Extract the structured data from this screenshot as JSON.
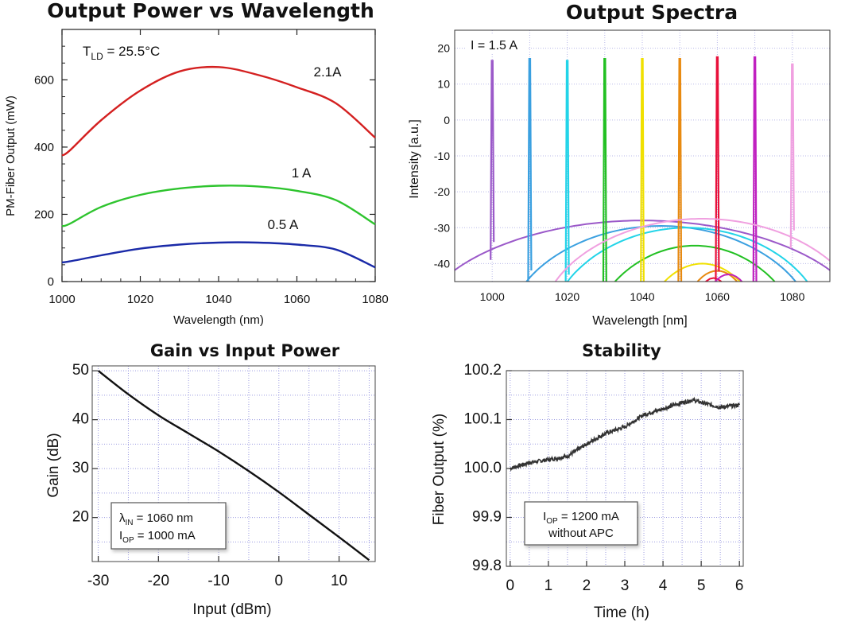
{
  "chart_data": [
    {
      "type": "line",
      "title": "Output Power vs Wavelength",
      "xlabel": "Wavelength (nm)",
      "ylabel": "PM-Fiber Output (mW)",
      "xlim": [
        1000,
        1080
      ],
      "ylim": [
        0,
        750
      ],
      "xticks": [
        "1000",
        "1020",
        "1040",
        "1060",
        "1080"
      ],
      "yticks": [
        "0",
        "200",
        "400",
        "600"
      ],
      "grid": false,
      "annotation": {
        "main": "T",
        "sub": "LD",
        "rest": " = 25.5°C"
      },
      "x": [
        1000,
        1002,
        1010,
        1020,
        1030,
        1040,
        1050,
        1060,
        1070,
        1080
      ],
      "series": [
        {
          "name": "2.1A",
          "color": "#d42020",
          "values": [
            375,
            390,
            480,
            568,
            625,
            638,
            615,
            578,
            530,
            428
          ]
        },
        {
          "name": "1 A",
          "color": "#2ec42e",
          "values": [
            165,
            172,
            222,
            258,
            277,
            285,
            283,
            270,
            242,
            170
          ]
        },
        {
          "name": "0.5 A",
          "color": "#1a2aa8",
          "values": [
            57,
            60,
            78,
            98,
            110,
            116,
            116,
            110,
            95,
            42
          ]
        }
      ]
    },
    {
      "type": "line",
      "title": "Output Spectra",
      "xlabel": "Wavelength [nm]",
      "ylabel": "Intensity [a.u.]",
      "xlim": [
        990,
        1090
      ],
      "ylim": [
        -45,
        25
      ],
      "xticks": [
        "1000",
        "1020",
        "1040",
        "1060",
        "1080"
      ],
      "yticks": [
        "20",
        "10",
        "0",
        "-10",
        "-20",
        "-30",
        "-40"
      ],
      "grid": true,
      "annotation": "I = 1.5 A",
      "series": [
        {
          "peak_nm": 1000,
          "peak_level": 16.5,
          "color": "#9b59c9",
          "dome_center": 1040,
          "dome_top": -28,
          "dome_half_width": 58
        },
        {
          "peak_nm": 1010,
          "peak_level": 17,
          "color": "#3aa0e0",
          "dome_center": 1045,
          "dome_top": -29.5,
          "dome_half_width": 40
        },
        {
          "peak_nm": 1020,
          "peak_level": 16.5,
          "color": "#22d4e8",
          "dome_center": 1052,
          "dome_top": -30,
          "dome_half_width": 36
        },
        {
          "peak_nm": 1030,
          "peak_level": 17,
          "color": "#22c022",
          "dome_center": 1054,
          "dome_top": -35,
          "dome_half_width": 28
        },
        {
          "peak_nm": 1040,
          "peak_level": 17,
          "color": "#f0e000",
          "dome_center": 1056,
          "dome_top": -40,
          "dome_half_width": 18
        },
        {
          "peak_nm": 1050,
          "peak_level": 17,
          "color": "#e88a10",
          "dome_center": 1060,
          "dome_top": -42,
          "dome_half_width": 12
        },
        {
          "peak_nm": 1060,
          "peak_level": 17.5,
          "color": "#e8103a",
          "dome_center": 1059,
          "dome_top": -44,
          "dome_half_width": 8
        },
        {
          "peak_nm": 1070,
          "peak_level": 17.5,
          "color": "#c020c0",
          "dome_center": 1063,
          "dome_top": -43,
          "dome_half_width": 10
        },
        {
          "peak_nm": 1080,
          "peak_level": 15.5,
          "color": "#f0a0e0",
          "dome_center": 1056,
          "dome_top": -27.5,
          "dome_half_width": 42
        }
      ]
    },
    {
      "type": "line",
      "title": "Gain vs Input Power",
      "xlabel": "Input (dBm)",
      "ylabel": "Gain (dB)",
      "xlim": [
        -31,
        16
      ],
      "ylim": [
        11,
        51
      ],
      "xticks": [
        "-30",
        "-20",
        "-10",
        "0",
        "10"
      ],
      "yticks": [
        "20",
        "30",
        "40",
        "50"
      ],
      "grid": true,
      "legend_box": {
        "l1_main": "λ",
        "l1_sub": "IN",
        "l1_rest": " =  1060 nm",
        "l2_main": "I",
        "l2_sub": "OP",
        "l2_rest": " = 1000 mA"
      },
      "x": [
        -30,
        -25,
        -20,
        -15,
        -10,
        -5,
        0,
        5,
        10,
        15
      ],
      "series": [
        {
          "name": "",
          "color": "#111111",
          "values": [
            50,
            45.2,
            40.9,
            37.2,
            33.5,
            29.5,
            25.2,
            20.6,
            16,
            11.3
          ]
        }
      ]
    },
    {
      "type": "line",
      "title": "Stability",
      "xlabel": "Time (h)",
      "ylabel": "Fiber Output (%)",
      "xlim": [
        -0.1,
        6.1
      ],
      "ylim": [
        99.8,
        100.2
      ],
      "xticks": [
        "0",
        "1",
        "2",
        "3",
        "4",
        "5",
        "6"
      ],
      "yticks": [
        "100.2",
        "100.1",
        "100.0",
        "99.9",
        "99.8"
      ],
      "grid": true,
      "legend_box": {
        "l1_main": "I",
        "l1_sub": "OP",
        "l1_rest": " = 1200 mA",
        "l2_main": "",
        "l2_sub": "",
        "l2_rest": "without APC"
      },
      "x": [
        0,
        0.5,
        1,
        1.5,
        2,
        2.5,
        3,
        3.5,
        4,
        4.5,
        4.8,
        5,
        5.5,
        6
      ],
      "series": [
        {
          "name": "",
          "color": "#333333",
          "values": [
            100.0,
            100.012,
            100.018,
            100.025,
            100.05,
            100.072,
            100.085,
            100.11,
            100.122,
            100.135,
            100.14,
            100.135,
            100.125,
            100.13
          ],
          "noise": 0.004
        }
      ]
    }
  ]
}
